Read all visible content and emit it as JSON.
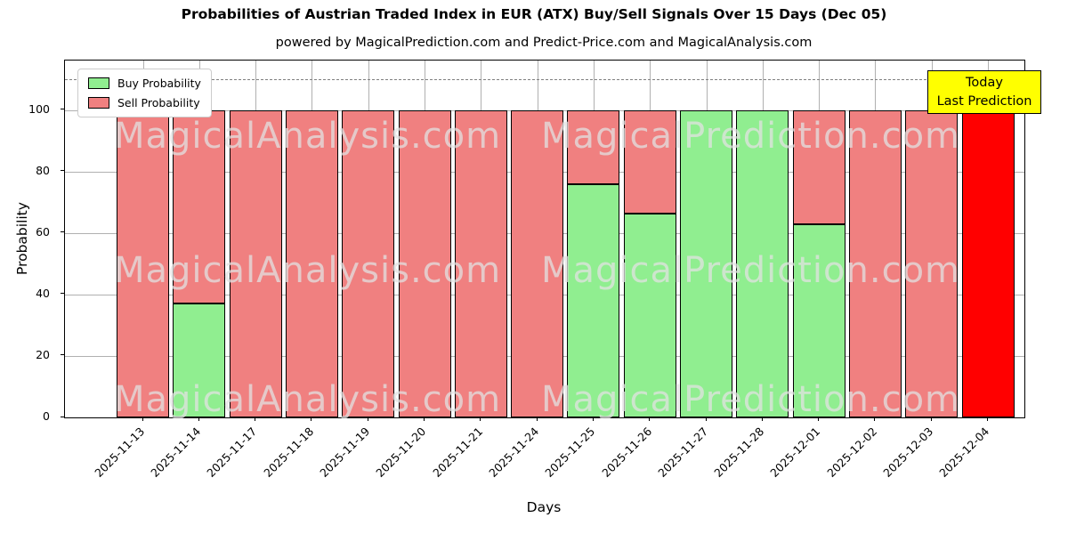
{
  "title": "Probabilities of Austrian Traded Index in EUR (ATX) Buy/Sell Signals Over 15 Days (Dec 05)",
  "subtitle": "powered by MagicalPrediction.com and Predict-Price.com and MagicalAnalysis.com",
  "legend": [
    {
      "label": "Buy Probability",
      "color": "#90ee90"
    },
    {
      "label": "Sell Probability",
      "color": "#f08080"
    }
  ],
  "today_box": {
    "line1": "Today",
    "line2": "Last Prediction",
    "bg_color": "#ffff00"
  },
  "watermarks": {
    "left": "MagicalAnalysis.com",
    "right": "MagicalPrediction.com"
  },
  "colors": {
    "buy": "#90ee90",
    "sell": "#f08080",
    "today_bar": "#ff0000",
    "grid": "#b0b0b0",
    "dashed_line": "#7f7f7f",
    "bar_edge": "#000000"
  },
  "chart_data": {
    "type": "bar",
    "stacked": true,
    "title": "Probabilities of Austrian Traded Index in EUR (ATX) Buy/Sell Signals Over 15 Days (Dec 05)",
    "xlabel": "Days",
    "ylabel": "Probability",
    "ylim": [
      0,
      116.2
    ],
    "yticks": [
      0,
      20,
      40,
      60,
      80,
      100
    ],
    "dashed_reference_line_y": 110,
    "grid": true,
    "legend_position": "upper left",
    "categories": [
      "2025-11-13",
      "2025-11-14",
      "2025-11-17",
      "2025-11-18",
      "2025-11-19",
      "2025-11-20",
      "2025-11-21",
      "2025-11-24",
      "2025-11-25",
      "2025-11-26",
      "2025-11-27",
      "2025-11-28",
      "2025-12-01",
      "2025-12-02",
      "2025-12-03",
      "2025-12-04"
    ],
    "series": [
      {
        "name": "Buy Probability",
        "color": "#90ee90",
        "values": [
          0,
          37,
          0,
          0,
          0,
          0,
          0,
          0,
          76,
          66.5,
          100,
          100,
          63,
          0,
          0,
          0
        ]
      },
      {
        "name": "Sell Probability",
        "color": "#f08080",
        "values": [
          100,
          63,
          100,
          100,
          100,
          100,
          100,
          100,
          24,
          33.5,
          0,
          0,
          37,
          100,
          100,
          100
        ]
      }
    ],
    "highlight_bar": {
      "index": 15,
      "color": "#ff0000",
      "meaning": "Today / Last Prediction"
    }
  }
}
